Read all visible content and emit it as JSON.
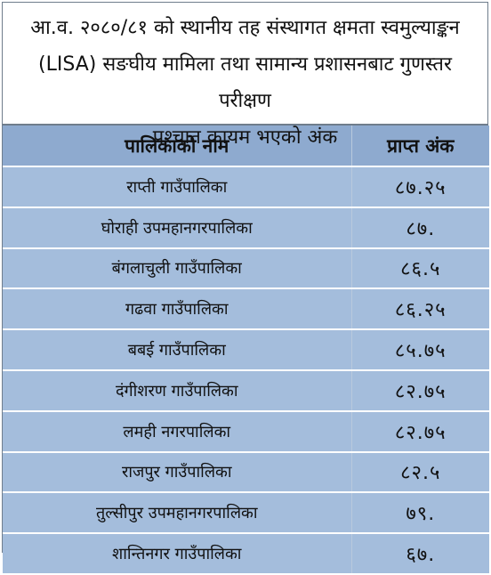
{
  "title": {
    "line1": "आ.व. २०८०/८१ को स्थानीय तह संस्थागत क्षमता स्वमुल्याङ्कन",
    "line2": "(LISA) सङघीय मामिला तथा सामान्य प्रशासनबाट गुणस्तर परीक्षण",
    "line3": "पश्चात कायम भएको अंक"
  },
  "table": {
    "headers": {
      "name": "पालिकाको नाम",
      "score": "प्राप्त अंक"
    },
    "rows": [
      {
        "name": "राप्ती गाउँपालिका",
        "score": "८७.२५"
      },
      {
        "name": "घोराही उपमहानगरपालिका",
        "score": "८७."
      },
      {
        "name": "बंगलाचुली गाउँपालिका",
        "score": "८६.५"
      },
      {
        "name": "गढवा गाउँपालिका",
        "score": "८६.२५"
      },
      {
        "name": "बबई गाउँपालिका",
        "score": "८५.७५"
      },
      {
        "name": "दंगीशरण गाउँपालिका",
        "score": "८२.७५"
      },
      {
        "name": "लमही नगरपालिका",
        "score": "८२.७५"
      },
      {
        "name": "राजपुर गाउँपालिका",
        "score": "८२.५"
      },
      {
        "name": "तुल्सीपुर उपमहानगरपालिका",
        "score": "७९."
      },
      {
        "name": "शान्तिनगर गाउँपालिका",
        "score": "६७."
      }
    ]
  }
}
